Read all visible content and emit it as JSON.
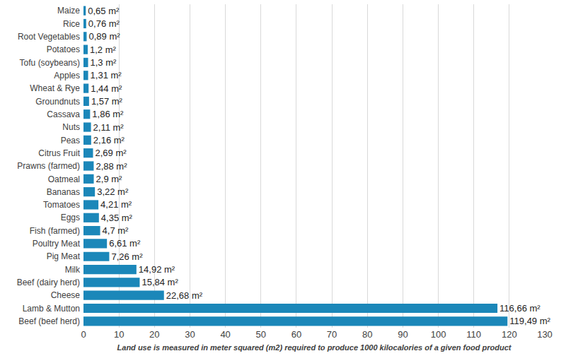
{
  "chart_data": {
    "type": "bar",
    "orientation": "horizontal",
    "categories": [
      "Maize",
      "Rice",
      "Root Vegetables",
      "Potatoes",
      "Tofu (soybeans)",
      "Apples",
      "Wheat & Rye",
      "Groundnuts",
      "Cassava",
      "Nuts",
      "Peas",
      "Citrus Fruit",
      "Prawns (farmed)",
      "Oatmeal",
      "Bananas",
      "Tomatoes",
      "Eggs",
      "Fish (farmed)",
      "Poultry Meat",
      "Pig Meat",
      "Milk",
      "Beef (dairy herd)",
      "Cheese",
      "Lamb & Mutton",
      "Beef (beef herd)"
    ],
    "values": [
      0.65,
      0.76,
      0.89,
      1.2,
      1.3,
      1.31,
      1.44,
      1.57,
      1.86,
      2.11,
      2.16,
      2.69,
      2.88,
      2.9,
      3.22,
      4.21,
      4.35,
      4.7,
      6.61,
      7.26,
      14.92,
      15.84,
      22.68,
      116.66,
      119.49
    ],
    "value_labels": [
      "0,65 m²",
      "0,76 m²",
      "0,89 m²",
      "1,2 m²",
      "1,3 m²",
      "1,31 m²",
      "1,44 m²",
      "1,57 m²",
      "1,86 m²",
      "2,11 m²",
      "2,16 m²",
      "2,69 m²",
      "2,88 m²",
      "2,9 m²",
      "3,22 m²",
      "4,21 m²",
      "4,35 m²",
      "4,7 m²",
      "6,61 m²",
      "7,26 m²",
      "14,92 m²",
      "15,84 m²",
      "22,68 m²",
      "116,66 m²",
      "119,49 m²"
    ],
    "data_labels": true,
    "color": "#1b87b9",
    "xlabel": "Land use is measured in meter squared (m2) required to produce 1000 kilocalories of a given food product",
    "xlim": [
      0,
      130
    ],
    "xticks": [
      0,
      10,
      20,
      30,
      40,
      50,
      60,
      70,
      80,
      90,
      100,
      110,
      120,
      130
    ],
    "grid": true
  }
}
